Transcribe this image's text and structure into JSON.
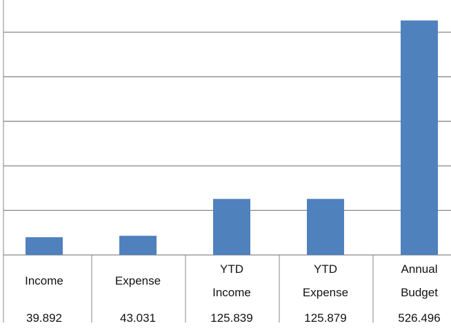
{
  "chart_data": {
    "type": "bar",
    "categories": [
      "Income",
      "Expense",
      "YTD Income",
      "YTD Expense",
      "Annual Budget"
    ],
    "values": [
      39.892,
      43.031,
      125.839,
      125.879,
      526.496
    ],
    "color": "#4f81bd",
    "ylim": [
      0,
      560
    ],
    "yticks": [
      0,
      100,
      200,
      300,
      400,
      500
    ],
    "grid": true
  }
}
